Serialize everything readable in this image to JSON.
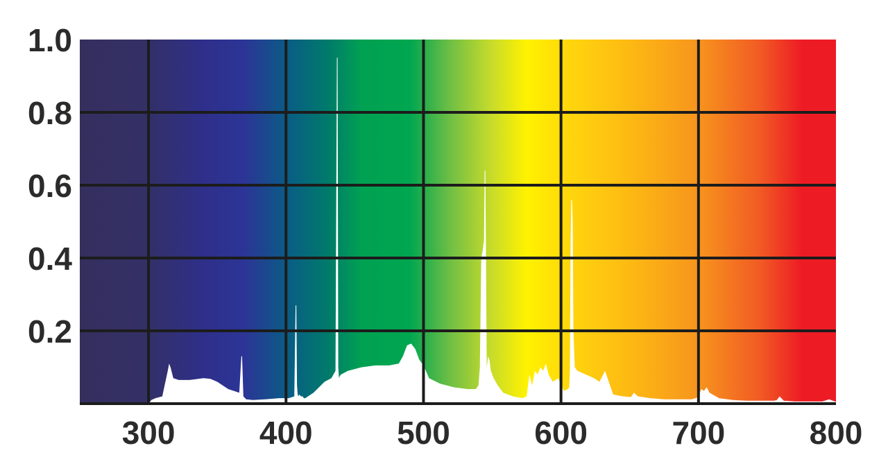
{
  "chart_data": {
    "type": "area",
    "title": "",
    "xlabel": "",
    "ylabel": "",
    "xlim": [
      250,
      800
    ],
    "ylim": [
      0,
      1.0
    ],
    "grid": true,
    "x_ticks": [
      300,
      400,
      500,
      600,
      700,
      800
    ],
    "x_tick_labels": [
      "300",
      "400",
      "500",
      "600",
      "700",
      "800"
    ],
    "y_ticks": [
      0.2,
      0.4,
      0.6,
      0.8,
      1.0
    ],
    "y_tick_labels": [
      "0.2",
      "0.4",
      "0.6",
      "0.8",
      "1.0"
    ],
    "background": {
      "kind": "visible-spectrum-gradient",
      "stops": [
        {
          "x": 250,
          "color": "#352f5e"
        },
        {
          "x": 300,
          "color": "#333067"
        },
        {
          "x": 340,
          "color": "#2e2f8a"
        },
        {
          "x": 370,
          "color": "#2c3596"
        },
        {
          "x": 400,
          "color": "#0a5b86"
        },
        {
          "x": 430,
          "color": "#007a6b"
        },
        {
          "x": 455,
          "color": "#00a152"
        },
        {
          "x": 490,
          "color": "#00a650"
        },
        {
          "x": 520,
          "color": "#71bf44"
        },
        {
          "x": 550,
          "color": "#c9dc2a"
        },
        {
          "x": 575,
          "color": "#fff200"
        },
        {
          "x": 610,
          "color": "#ffd30e"
        },
        {
          "x": 650,
          "color": "#fdb913"
        },
        {
          "x": 700,
          "color": "#f7941d"
        },
        {
          "x": 745,
          "color": "#f15a24"
        },
        {
          "x": 775,
          "color": "#ed1c24"
        },
        {
          "x": 800,
          "color": "#ed1c24"
        }
      ]
    },
    "series": [
      {
        "fill_color": "#ffffff",
        "x": [
          250,
          300,
          302,
          305,
          310,
          314,
          315,
          316,
          318,
          322,
          330,
          340,
          345,
          350,
          358,
          366,
          367.5,
          368,
          368.5,
          369,
          371,
          376,
          385,
          395,
          402,
          406,
          407,
          407.5,
          408,
          408.5,
          409,
          409.5,
          411,
          412,
          413,
          414,
          420,
          428,
          433,
          436,
          437,
          437.5,
          438,
          438.5,
          439,
          440,
          445,
          455,
          465,
          475,
          482,
          485,
          488,
          491,
          494,
          497,
          500,
          504,
          512,
          522,
          532,
          538,
          540,
          541,
          542,
          543,
          544,
          544.5,
          545,
          545.5,
          546,
          547,
          548,
          549,
          551,
          554,
          558,
          565,
          572,
          575,
          577,
          579,
          581,
          583,
          585,
          587,
          589,
          591,
          594,
          598,
          602,
          605,
          606,
          606.5,
          607,
          607.5,
          608,
          608.5,
          609,
          610,
          612,
          618,
          624,
          628,
          632,
          638,
          645,
          651,
          653,
          656,
          665,
          675,
          685,
          695,
          698,
          700,
          702,
          704,
          706,
          708,
          715,
          725,
          735,
          745,
          755,
          757,
          759,
          762,
          770,
          780,
          790,
          795,
          800
        ],
        "y": [
          0,
          0,
          0.01,
          0.015,
          0.02,
          0.09,
          0.11,
          0.1,
          0.07,
          0.065,
          0.065,
          0.07,
          0.068,
          0.06,
          0.04,
          0.03,
          0.13,
          0.13,
          0.08,
          0.02,
          0.012,
          0.01,
          0.012,
          0.015,
          0.015,
          0.02,
          0.27,
          0.27,
          0.05,
          0.025,
          0.02,
          0.025,
          0.02,
          0.02,
          0.015,
          0.015,
          0.03,
          0.06,
          0.07,
          0.09,
          0.95,
          0.95,
          0.1,
          0.07,
          0.075,
          0.08,
          0.09,
          0.1,
          0.105,
          0.105,
          0.11,
          0.13,
          0.16,
          0.165,
          0.15,
          0.12,
          0.105,
          0.07,
          0.055,
          0.045,
          0.04,
          0.04,
          0.05,
          0.1,
          0.4,
          0.42,
          0.45,
          0.64,
          0.64,
          0.4,
          0.1,
          0.13,
          0.12,
          0.09,
          0.07,
          0.05,
          0.03,
          0.02,
          0.015,
          0.02,
          0.08,
          0.05,
          0.09,
          0.08,
          0.1,
          0.09,
          0.11,
          0.08,
          0.06,
          0.07,
          0.035,
          0.04,
          0.045,
          0.1,
          0.45,
          0.56,
          0.56,
          0.5,
          0.2,
          0.1,
          0.09,
          0.08,
          0.07,
          0.06,
          0.09,
          0.025,
          0.02,
          0.018,
          0.03,
          0.02,
          0.015,
          0.012,
          0.012,
          0.012,
          0.015,
          0.02,
          0.04,
          0.035,
          0.045,
          0.03,
          0.015,
          0.01,
          0.008,
          0.008,
          0.008,
          0.01,
          0.02,
          0.008,
          0.006,
          0.006,
          0.006,
          0.012,
          0.005
        ]
      }
    ]
  }
}
